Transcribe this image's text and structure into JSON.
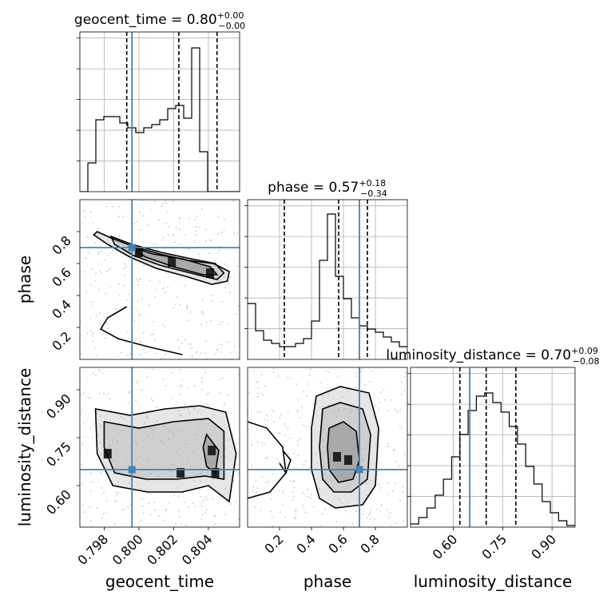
{
  "chart_data": {
    "type": "corner",
    "parameters": [
      "geocent_time",
      "phase",
      "luminosity_distance"
    ],
    "truths": {
      "geocent_time": 0.7996,
      "phase": 0.7,
      "luminosity_distance": 0.65
    },
    "ranges": {
      "geocent_time": [
        0.7966,
        0.8058
      ],
      "phase": [
        0.0,
        1.0
      ],
      "luminosity_distance": [
        0.47,
        0.97
      ]
    },
    "ticks": {
      "geocent_time": {
        "values": [
          0.798,
          0.8,
          0.802,
          0.804
        ],
        "labels": [
          "0.798",
          "0.800",
          "0.802",
          "0.804"
        ]
      },
      "phase": {
        "values": [
          0.2,
          0.4,
          0.6,
          0.8
        ],
        "labels": [
          "0.2",
          "0.4",
          "0.6",
          "0.8"
        ]
      },
      "luminosity_distance": {
        "values": [
          0.6,
          0.75,
          0.9
        ],
        "labels": [
          "0.60",
          "0.75",
          "0.90"
        ]
      }
    },
    "summaries": [
      {
        "param": "geocent_time",
        "title": "geocent_time = 0.80",
        "plus": "+0.00",
        "minus": "−0.00",
        "quantiles": [
          0.7993,
          0.8023,
          0.8045
        ]
      },
      {
        "param": "phase",
        "title": "phase = 0.57",
        "plus": "+0.18",
        "minus": "−0.34",
        "quantiles": [
          0.23,
          0.57,
          0.75
        ]
      },
      {
        "param": "luminosity_distance",
        "title": "luminosity_distance = 0.70",
        "plus": "+0.09",
        "minus": "−0.08",
        "quantiles": [
          0.62,
          0.7,
          0.79
        ]
      }
    ],
    "histograms": {
      "geocent_time": {
        "edges_start": 0.7966,
        "bin_width": 0.00046,
        "counts": [
          0,
          0.18,
          0.45,
          0.47,
          0.47,
          0.43,
          0.4,
          0.37,
          0.4,
          0.42,
          0.45,
          0.52,
          0.54,
          0.46,
          0.9,
          0.25,
          0,
          0,
          0,
          0
        ]
      },
      "phase": {
        "edges_start": 0.0,
        "bin_width": 0.05,
        "counts": [
          0.35,
          0.18,
          0.12,
          0.1,
          0.08,
          0.08,
          0.1,
          0.13,
          0.24,
          0.62,
          0.91,
          0.52,
          0.38,
          0.26,
          0.21,
          0.19,
          0.17,
          0.14,
          0.11,
          0.08
        ]
      },
      "luminosity_distance": {
        "edges_start": 0.47,
        "bin_width": 0.025,
        "counts": [
          0.02,
          0.06,
          0.12,
          0.2,
          0.3,
          0.44,
          0.58,
          0.73,
          0.82,
          0.84,
          0.78,
          0.72,
          0.63,
          0.52,
          0.38,
          0.27,
          0.16,
          0.09,
          0.04,
          0.01
        ]
      }
    },
    "contours_2d": {
      "geocent_time-phase": {
        "hotspots": [
          {
            "x": 0.8041,
            "y": 0.54
          },
          {
            "x": 0.8,
            "y": 0.67
          },
          {
            "x": 0.8019,
            "y": 0.61
          }
        ],
        "levels": [
          [
            [
              0.7976,
              0.8
            ],
            [
              0.7984,
              0.76
            ],
            [
              0.7996,
              0.71
            ],
            [
              0.8012,
              0.66
            ],
            [
              0.8028,
              0.62
            ],
            [
              0.8043,
              0.6
            ],
            [
              0.8052,
              0.55
            ],
            [
              0.8051,
              0.49
            ],
            [
              0.8042,
              0.47
            ],
            [
              0.8027,
              0.52
            ],
            [
              0.801,
              0.57
            ],
            [
              0.7995,
              0.64
            ],
            [
              0.7982,
              0.72
            ],
            [
              0.7974,
              0.78
            ]
          ],
          [
            [
              0.7984,
              0.77
            ],
            [
              0.7996,
              0.72
            ],
            [
              0.8013,
              0.67
            ],
            [
              0.803,
              0.63
            ],
            [
              0.8044,
              0.6
            ],
            [
              0.8049,
              0.54
            ],
            [
              0.8045,
              0.5
            ],
            [
              0.803,
              0.54
            ],
            [
              0.8012,
              0.59
            ],
            [
              0.7997,
              0.65
            ],
            [
              0.7986,
              0.72
            ]
          ],
          [
            [
              0.7994,
              0.71
            ],
            [
              0.8008,
              0.66
            ],
            [
              0.8025,
              0.63
            ],
            [
              0.8041,
              0.58
            ],
            [
              0.8045,
              0.53
            ],
            [
              0.8037,
              0.53
            ],
            [
              0.802,
              0.58
            ],
            [
              0.8004,
              0.64
            ]
          ]
        ],
        "lower_branch": [
          [
            0.7993,
            0.33
          ],
          [
            0.7982,
            0.26
          ],
          [
            0.7978,
            0.19
          ],
          [
            0.7988,
            0.13
          ],
          [
            0.8005,
            0.08
          ],
          [
            0.8025,
            0.03
          ]
        ]
      },
      "geocent_time-luminosity_distance": {
        "hotspots": [
          {
            "x": 0.8042,
            "y": 0.71
          },
          {
            "x": 0.8044,
            "y": 0.64
          },
          {
            "x": 0.7982,
            "y": 0.7
          },
          {
            "x": 0.8024,
            "y": 0.64
          }
        ],
        "levels": [
          [
            [
              0.7975,
              0.84
            ],
            [
              0.7995,
              0.82
            ],
            [
              0.8015,
              0.84
            ],
            [
              0.8035,
              0.85
            ],
            [
              0.805,
              0.83
            ],
            [
              0.8056,
              0.7
            ],
            [
              0.8052,
              0.55
            ],
            [
              0.804,
              0.6
            ],
            [
              0.8025,
              0.58
            ],
            [
              0.8005,
              0.58
            ],
            [
              0.7985,
              0.6
            ],
            [
              0.7976,
              0.7
            ]
          ],
          [
            [
              0.798,
              0.8
            ],
            [
              0.8,
              0.78
            ],
            [
              0.802,
              0.8
            ],
            [
              0.804,
              0.81
            ],
            [
              0.8049,
              0.77
            ],
            [
              0.8049,
              0.62
            ],
            [
              0.8038,
              0.63
            ],
            [
              0.8022,
              0.62
            ],
            [
              0.8004,
              0.62
            ],
            [
              0.7986,
              0.64
            ],
            [
              0.798,
              0.72
            ]
          ],
          [
            [
              0.8039,
              0.76
            ],
            [
              0.8046,
              0.71
            ],
            [
              0.8044,
              0.64
            ],
            [
              0.8039,
              0.66
            ],
            [
              0.8037,
              0.72
            ]
          ]
        ]
      },
      "phase-luminosity_distance": {
        "hotspots": [
          {
            "x": 0.56,
            "y": 0.69
          },
          {
            "x": 0.63,
            "y": 0.68
          }
        ],
        "levels": [
          [
            [
              0.43,
              0.88
            ],
            [
              0.58,
              0.91
            ],
            [
              0.76,
              0.89
            ],
            [
              0.82,
              0.78
            ],
            [
              0.8,
              0.6
            ],
            [
              0.72,
              0.54
            ],
            [
              0.55,
              0.53
            ],
            [
              0.45,
              0.56
            ],
            [
              0.4,
              0.65
            ],
            [
              0.4,
              0.78
            ]
          ],
          [
            [
              0.47,
              0.84
            ],
            [
              0.58,
              0.86
            ],
            [
              0.72,
              0.84
            ],
            [
              0.77,
              0.76
            ],
            [
              0.75,
              0.62
            ],
            [
              0.65,
              0.58
            ],
            [
              0.54,
              0.58
            ],
            [
              0.47,
              0.62
            ],
            [
              0.45,
              0.72
            ]
          ],
          [
            [
              0.51,
              0.78
            ],
            [
              0.6,
              0.8
            ],
            [
              0.68,
              0.77
            ],
            [
              0.7,
              0.68
            ],
            [
              0.66,
              0.62
            ],
            [
              0.57,
              0.61
            ],
            [
              0.51,
              0.65
            ],
            [
              0.5,
              0.72
            ]
          ]
        ],
        "side_contours": [
          [
            [
              0.0,
              0.8
            ],
            [
              0.12,
              0.78
            ],
            [
              0.22,
              0.72
            ],
            [
              0.24,
              0.64
            ],
            [
              0.14,
              0.58
            ],
            [
              0.0,
              0.56
            ]
          ],
          [
            [
              0.22,
              0.71
            ],
            [
              0.27,
              0.68
            ],
            [
              0.24,
              0.64
            ],
            [
              0.2,
              0.67
            ]
          ]
        ]
      }
    },
    "axis_labels": {
      "x": [
        "geocent_time",
        "phase",
        "luminosity_distance"
      ],
      "y": [
        "phase",
        "luminosity_distance"
      ]
    }
  }
}
